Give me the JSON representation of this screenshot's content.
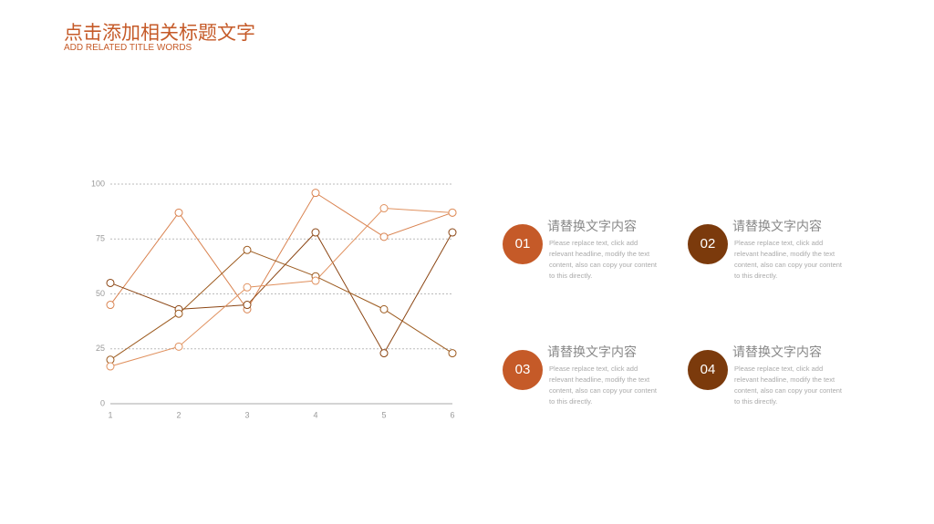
{
  "header": {
    "title": "点击添加相关标题文字",
    "subtitle": "ADD RELATED TITLE WORDS"
  },
  "chart_data": {
    "type": "line",
    "x": [
      1,
      2,
      3,
      4,
      5,
      6
    ],
    "xlim": [
      1,
      6
    ],
    "xticks": [
      1,
      2,
      3,
      4,
      5,
      6
    ],
    "ylim": [
      0,
      100
    ],
    "yticks": [
      0,
      25,
      50,
      75,
      100
    ],
    "grid": true,
    "series": [
      {
        "color": "#d9824f",
        "values": [
          45,
          87,
          43,
          96,
          76,
          87
        ]
      },
      {
        "color": "#8b4513",
        "values": [
          55,
          43,
          45,
          78,
          23,
          78
        ]
      },
      {
        "color": "#9c5a1e",
        "values": [
          20,
          41,
          70,
          58,
          43,
          23
        ]
      },
      {
        "color": "#e0915f",
        "values": [
          17,
          26,
          53,
          56,
          89,
          87
        ]
      }
    ]
  },
  "items": [
    {
      "number": "01",
      "color": "#c55a28",
      "title": "请替换文字内容",
      "text": "Please replace text, click add relevant headline, modify the text content, also can copy your content to this directly."
    },
    {
      "number": "02",
      "color": "#7b3a0c",
      "title": "请替换文字内容",
      "text": "Please replace text, click add relevant headline, modify the text content, also can copy your content to this directly."
    },
    {
      "number": "03",
      "color": "#c55a28",
      "title": "请替换文字内容",
      "text": "Please replace text, click add relevant headline, modify the text content, also can copy your content to this directly."
    },
    {
      "number": "04",
      "color": "#7b3a0c",
      "title": "请替换文字内容",
      "text": "Please replace text, click add relevant headline, modify the text content, also can copy your content to this directly."
    }
  ]
}
